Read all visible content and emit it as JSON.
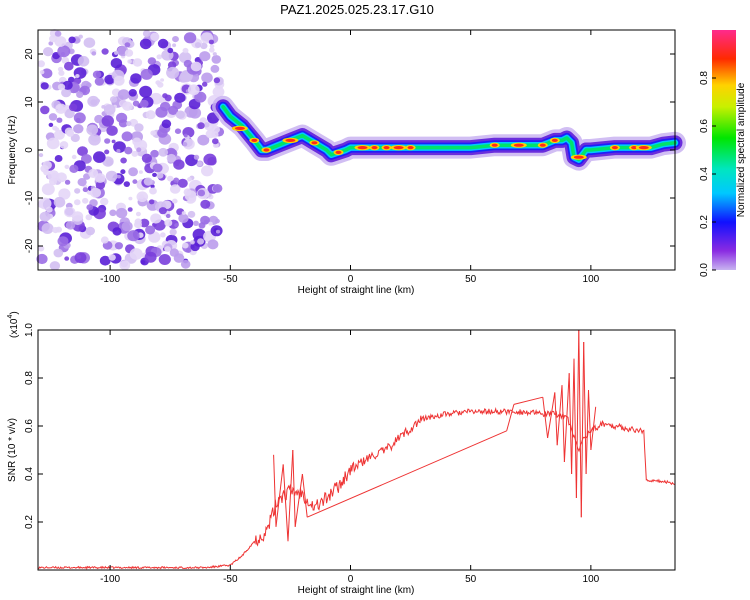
{
  "chart_data": [
    {
      "type": "heatmap",
      "title": "PAZ1.2025.025.23.17.G10",
      "xlabel": "Height of straight line (km)",
      "ylabel": "Frequency (Hz)",
      "xlim": [
        -130,
        135
      ],
      "ylim": [
        -25,
        25
      ],
      "x_ticks": [
        "-100",
        "-50",
        "0",
        "50",
        "100"
      ],
      "y_ticks": [
        "-20",
        "-10",
        "0",
        "10",
        "20"
      ],
      "colorbar": {
        "label": "Normalized spectral amplitude",
        "range": [
          0,
          1
        ],
        "ticks": [
          "0.0",
          "0.2",
          "0.4",
          "0.6",
          "0.8"
        ],
        "colormap": "rainbow (magenta-blue-cyan-green-yellow-red-pink)"
      },
      "noise_region_x": [
        -130,
        -53
      ],
      "ridge": {
        "x": [
          -53,
          -50,
          -45,
          -40,
          -37,
          -35,
          -30,
          -25,
          -20,
          -15,
          -10,
          -8,
          -5,
          -2,
          0,
          5,
          10,
          20,
          30,
          40,
          50,
          60,
          70,
          80,
          85,
          88,
          90,
          92,
          93,
          95,
          98,
          100,
          110,
          120,
          125,
          130,
          135
        ],
        "y": [
          9,
          7,
          5,
          2,
          0,
          0,
          1,
          2,
          3,
          1.5,
          0,
          -1,
          -0.5,
          0,
          0.5,
          0.5,
          0.5,
          0.5,
          0.5,
          0.5,
          0.5,
          1,
          1,
          1,
          2,
          2,
          2.5,
          1.5,
          -1.5,
          -2,
          0,
          0,
          0.5,
          0.5,
          0.5,
          1.2,
          1.5
        ]
      }
    },
    {
      "type": "line",
      "xlabel": "Height of straight line (km)",
      "ylabel": "SNR (10 * v/v)",
      "scale_label": "(x10",
      "scale_exponent": "4",
      "xlim": [
        -130,
        135
      ],
      "ylim": [
        0,
        1.0
      ],
      "x_ticks": [
        "-100",
        "-50",
        "0",
        "50",
        "100"
      ],
      "y_ticks": [
        "0.2",
        "0.4",
        "0.6",
        "0.8",
        "1.0"
      ],
      "color": "#ee3333",
      "series": [
        {
          "x": [
            -130,
            -60,
            -50,
            -45,
            -40,
            -35,
            -30,
            -25,
            -20,
            -15,
            -10,
            -5,
            0,
            5,
            10,
            15,
            20,
            30,
            40,
            50,
            60,
            70,
            80,
            85,
            90,
            93,
            95,
            97,
            100,
            105,
            110,
            115,
            120,
            122,
            123,
            125,
            130,
            135
          ],
          "y": [
            0.01,
            0.01,
            0.02,
            0.06,
            0.12,
            0.16,
            0.3,
            0.33,
            0.32,
            0.26,
            0.3,
            0.35,
            0.42,
            0.45,
            0.48,
            0.5,
            0.55,
            0.63,
            0.65,
            0.66,
            0.66,
            0.66,
            0.65,
            0.65,
            0.64,
            0.55,
            0.5,
            0.55,
            0.58,
            0.61,
            0.6,
            0.59,
            0.58,
            0.58,
            0.38,
            0.37,
            0.37,
            0.36
          ]
        }
      ],
      "spikes": [
        {
          "x": -32,
          "y": 0.48
        },
        {
          "x": -31,
          "y": 0.18
        },
        {
          "x": -28,
          "y": 0.44
        },
        {
          "x": -26,
          "y": 0.12
        },
        {
          "x": -24,
          "y": 0.5
        },
        {
          "x": -23,
          "y": 0.18
        },
        {
          "x": -20,
          "y": 0.4
        },
        {
          "x": -18,
          "y": 0.22
        },
        {
          "x": 65,
          "y": 0.58
        },
        {
          "x": 68,
          "y": 0.69
        },
        {
          "x": 80,
          "y": 0.72
        },
        {
          "x": 82,
          "y": 0.55
        },
        {
          "x": 85,
          "y": 0.74
        },
        {
          "x": 86,
          "y": 0.52
        },
        {
          "x": 88,
          "y": 0.77
        },
        {
          "x": 89,
          "y": 0.45
        },
        {
          "x": 91,
          "y": 0.82
        },
        {
          "x": 92,
          "y": 0.4
        },
        {
          "x": 93,
          "y": 0.88
        },
        {
          "x": 94,
          "y": 0.3
        },
        {
          "x": 95,
          "y": 1.0
        },
        {
          "x": 96,
          "y": 0.22
        },
        {
          "x": 97,
          "y": 0.95
        },
        {
          "x": 98,
          "y": 0.4
        },
        {
          "x": 99,
          "y": 0.75
        },
        {
          "x": 100,
          "y": 0.5
        },
        {
          "x": 102,
          "y": 0.68
        }
      ]
    }
  ]
}
